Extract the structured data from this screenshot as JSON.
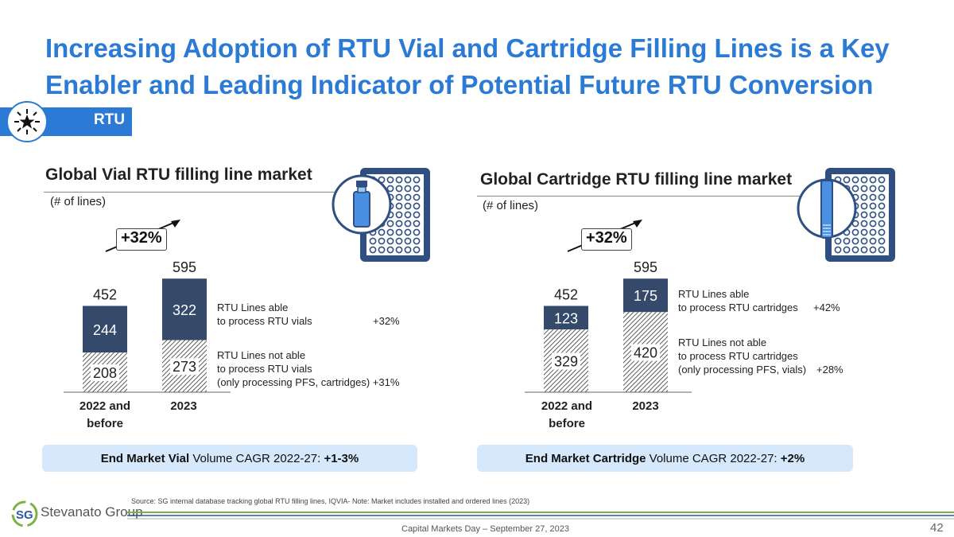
{
  "title_line1": "Increasing Adoption of RTU Vial and Cartridge Filling Lines is a Key",
  "title_line2": "Enabler and Leading Indicator of Potential Future RTU Conversion",
  "tag": "RTU",
  "colors": {
    "accent": "#2b7bd6",
    "dark_bar": "#354a6b",
    "cagr_bg": "#d6e8fb"
  },
  "icons": {
    "tag": "star-burst-icon",
    "vial_tray": "vial-tray-icon",
    "cartridge_tray": "cartridge-tray-icon",
    "logo": "sg-logo-icon"
  },
  "chart_data": [
    {
      "type": "bar",
      "stacked": true,
      "title": "Global Vial RTU filling line market",
      "unit": "(# of lines)",
      "growth_label": "+32%",
      "categories": [
        "2022 and before",
        "2023"
      ],
      "series": [
        {
          "name": "RTU Lines not able to process RTU vials (only processing PFS, cartridges)",
          "values": [
            208,
            273
          ],
          "growth": "+31%",
          "pattern": "hatched"
        },
        {
          "name": "RTU Lines able to process RTU vials",
          "values": [
            244,
            322
          ],
          "growth": "+32%",
          "pattern": "solid"
        }
      ],
      "totals": [
        452,
        595
      ],
      "legend_able_line1": "RTU Lines able",
      "legend_able_line2": "to process RTU vials",
      "legend_notable_line1": "RTU Lines not able",
      "legend_notable_line2": "to process RTU vials",
      "legend_notable_line3": "(only processing PFS, cartridges) +31%",
      "cagr_bold": "End Market Vial",
      "cagr_text": " Volume CAGR 2022-27: ",
      "cagr_value": "+1-3%"
    },
    {
      "type": "bar",
      "stacked": true,
      "title": "Global Cartridge RTU filling line market",
      "unit": "(# of lines)",
      "growth_label": "+32%",
      "categories": [
        "2022 and before",
        "2023"
      ],
      "series": [
        {
          "name": "RTU Lines not able to process RTU cartridges (only processing PFS, vials)",
          "values": [
            329,
            420
          ],
          "growth": "+28%",
          "pattern": "hatched"
        },
        {
          "name": "RTU Lines able to process RTU cartridges",
          "values": [
            123,
            175
          ],
          "growth": "+42%",
          "pattern": "solid"
        }
      ],
      "totals": [
        452,
        595
      ],
      "legend_able_line1": "RTU Lines able",
      "legend_able_line2": "to process RTU cartridges",
      "legend_notable_line1": "RTU Lines not able",
      "legend_notable_line2": "to process RTU cartridges",
      "legend_notable_line3": "(only processing PFS, vials)",
      "cagr_bold": "End Market Cartridge",
      "cagr_text": " Volume CAGR 2022-27: ",
      "cagr_value": "+2%"
    }
  ],
  "x_labels": {
    "c1": "2022 and",
    "c1b": "before",
    "c2": "2023"
  },
  "source": "Source: SG internal database tracking global RTU filling lines, IQVIA- Note: Market includes installed and ordered lines (2023)",
  "logo_brand": "Stevanato Group",
  "logo_mark": "SG",
  "footer": "Capital Markets Day – September 27, 2023",
  "page_number": "42"
}
